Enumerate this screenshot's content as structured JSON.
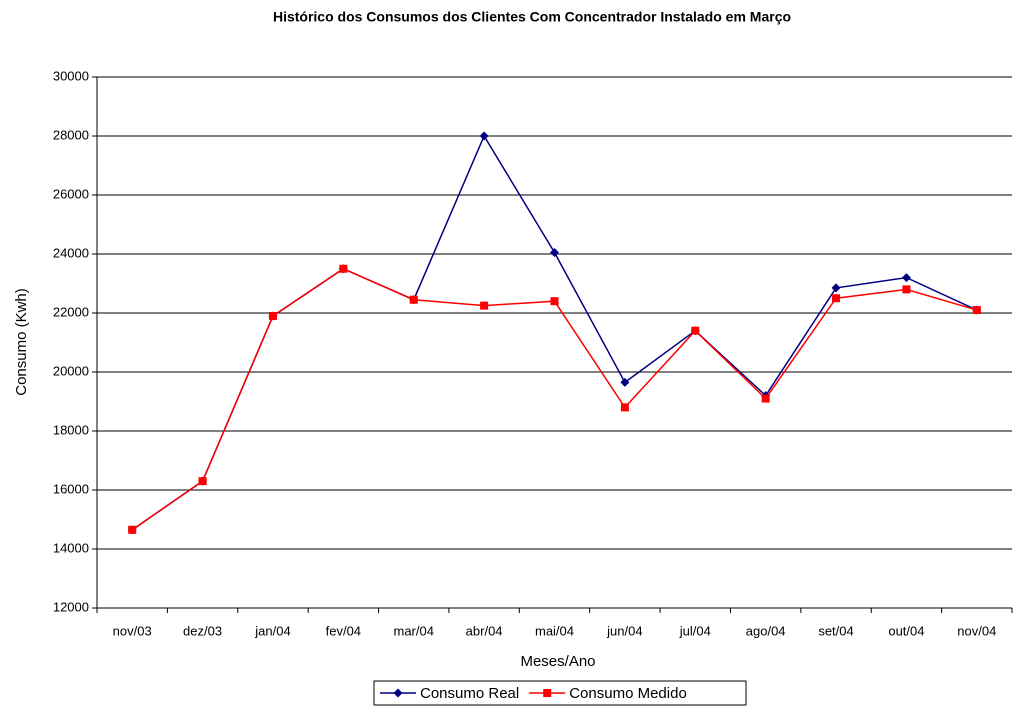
{
  "chart_data": {
    "type": "line",
    "title": "Histórico dos Consumos dos Clientes Com Concentrador Instalado em Março",
    "xlabel": "Meses/Ano",
    "ylabel": "Consumo (Kwh)",
    "categories": [
      "nov/03",
      "dez/03",
      "jan/04",
      "fev/04",
      "mar/04",
      "abr/04",
      "mai/04",
      "jun/04",
      "jul/04",
      "ago/04",
      "set/04",
      "out/04",
      "nov/04"
    ],
    "series": [
      {
        "name": "Consumo Real",
        "color": "#000080",
        "marker": "diamond",
        "values": [
          14650,
          16300,
          21900,
          23500,
          22450,
          28000,
          24050,
          19650,
          21400,
          19200,
          22850,
          23200,
          22100
        ]
      },
      {
        "name": "Consumo Medido",
        "color": "#ff0000",
        "marker": "square",
        "values": [
          14650,
          16300,
          21900,
          23500,
          22450,
          22250,
          22400,
          18800,
          21400,
          19100,
          22500,
          22800,
          22100
        ]
      }
    ],
    "ylim": [
      12000,
      30000
    ],
    "yticks": [
      12000,
      14000,
      16000,
      18000,
      20000,
      22000,
      24000,
      26000,
      28000,
      30000
    ],
    "grid": true,
    "legend": "bottom"
  }
}
